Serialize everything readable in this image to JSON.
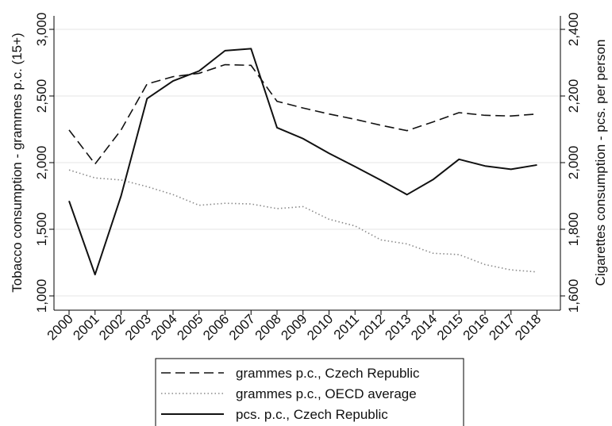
{
  "chart_data": {
    "type": "line",
    "categories": [
      "2000",
      "2001",
      "2002",
      "2003",
      "2004",
      "2005",
      "2006",
      "2007",
      "2008",
      "2009",
      "2010",
      "2011",
      "2012",
      "2013",
      "2014",
      "2015",
      "2016",
      "2017",
      "2018"
    ],
    "y_left": {
      "label": "Tobacco consumption - grammes p.c. (15+)",
      "range": [
        1000,
        3000
      ],
      "ticks": [
        1000,
        1500,
        2000,
        2500,
        3000
      ],
      "tick_labels": [
        "1,000",
        "1,500",
        "2,000",
        "2,500",
        "3,000"
      ]
    },
    "y_right": {
      "label": "Cigarettes consumption - pcs. per person",
      "range": [
        1600,
        2400
      ],
      "ticks": [
        1600,
        1800,
        2000,
        2200,
        2400
      ],
      "tick_labels": [
        "1,600",
        "1,800",
        "2,000",
        "2,200",
        "2,400"
      ]
    },
    "grid": true,
    "legend_position": "bottom",
    "series": [
      {
        "name": "grammes p.c., Czech Republic",
        "axis": "left",
        "style": "dashed",
        "color": "#111111",
        "values": [
          2245,
          1990,
          2245,
          2590,
          2645,
          2670,
          2735,
          2730,
          2460,
          2410,
          2365,
          2325,
          2280,
          2240,
          2305,
          2375,
          2355,
          2350,
          2365
        ]
      },
      {
        "name": "grammes p.c., OECD average",
        "axis": "left",
        "style": "dotted",
        "color": "#8a8a8a",
        "values": [
          1945,
          1885,
          1870,
          1820,
          1760,
          1680,
          1695,
          1690,
          1655,
          1670,
          1575,
          1525,
          1420,
          1390,
          1320,
          1310,
          1235,
          1195,
          1180
        ]
      },
      {
        "name": "pcs. p.c., Czech Republic",
        "axis": "right",
        "style": "solid",
        "color": "#111111",
        "values": [
          1885,
          1664,
          1900,
          2192,
          2245,
          2275,
          2336,
          2342,
          2105,
          2072,
          2028,
          1988,
          1947,
          1904,
          1949,
          2010,
          1990,
          1980,
          1993
        ]
      }
    ]
  }
}
